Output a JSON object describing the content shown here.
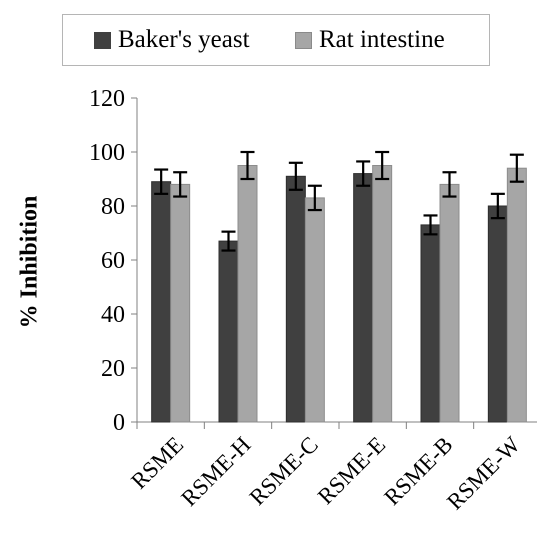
{
  "chart_data": {
    "type": "bar",
    "title": "",
    "xlabel": "",
    "ylabel": "% Inhibition",
    "ylim": [
      0,
      120
    ],
    "yticks": [
      0,
      20,
      40,
      60,
      80,
      100,
      120
    ],
    "grid": false,
    "legend_position": "top",
    "categories": [
      "RSME",
      "RSME-H",
      "RSME-C",
      "RSME-E",
      "RSME-B",
      "RSME-W"
    ],
    "series": [
      {
        "name": "Baker's yeast",
        "color": "#404040",
        "values": [
          89,
          67,
          91,
          92,
          73,
          80
        ],
        "errors": [
          4.5,
          3.5,
          5,
          4.5,
          3.5,
          4.5
        ]
      },
      {
        "name": "Rat intestine",
        "color": "#a6a6a6",
        "values": [
          88,
          95,
          83,
          95,
          88,
          94
        ],
        "errors": [
          4.5,
          5,
          4.5,
          5,
          4.5,
          5
        ]
      }
    ]
  }
}
